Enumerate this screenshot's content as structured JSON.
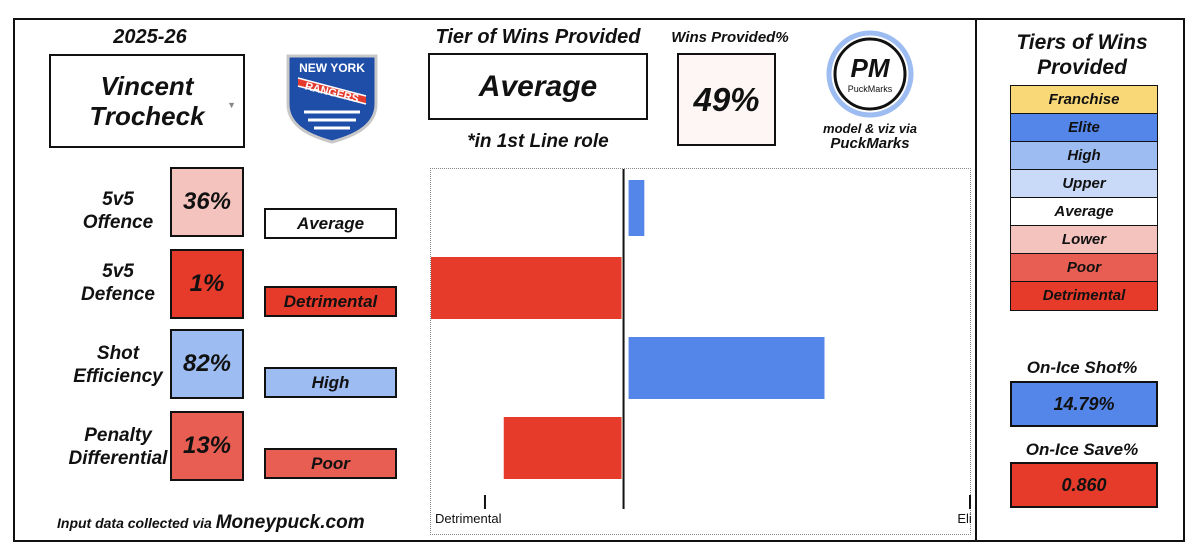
{
  "header": {
    "season": "2025-26",
    "player_name": "Vincent Trocheck",
    "team_logo": {
      "icon": "rangers-shield-logo",
      "line1": "NEW YORK",
      "line2": "RANGERS"
    }
  },
  "metrics": [
    {
      "label_line1": "5v5",
      "label_line2": "Offence",
      "percent": "36%",
      "tier": "Average",
      "pct_color": "#f4c3be",
      "tier_color": "#ffffff"
    },
    {
      "label_line1": "5v5",
      "label_line2": "Defence",
      "percent": "1%",
      "tier": "Detrimental",
      "pct_color": "#e63b2a",
      "tier_color": "#e63b2a"
    },
    {
      "label_line1": "Shot",
      "label_line2": "Efficiency",
      "percent": "82%",
      "tier": "High",
      "pct_color": "#9dbcf2",
      "tier_color": "#9dbcf2"
    },
    {
      "label_line1": "Penalty",
      "label_line2": "Differential",
      "percent": "13%",
      "tier": "Poor",
      "pct_color": "#e85e52",
      "tier_color": "#e85e52"
    }
  ],
  "footer": {
    "prefix": "Input data collected via",
    "source": "Moneypuck.com"
  },
  "tier_of_wins": {
    "title": "Tier of Wins Provided",
    "value": "Average",
    "role_note": "*in 1st Line role"
  },
  "wins_provided": {
    "title": "Wins Provided%",
    "value": "49%"
  },
  "puckmarks": {
    "logo_text": "PM",
    "logo_subtext": "PuckMarks",
    "credit_line": "model & viz via",
    "credit_brand": "PuckMarks"
  },
  "chart_data": {
    "type": "bar",
    "orientation": "horizontal",
    "categories": [
      "5v5 Offence",
      "5v5 Defence",
      "Shot Efficiency",
      "Penalty Differential"
    ],
    "values": [
      0.06,
      -0.55,
      0.58,
      -0.34
    ],
    "xlim": [
      -0.55,
      1.0
    ],
    "x_tick_labels": [
      "Detrimental",
      "Elite"
    ],
    "x_tick_values": [
      -0.4,
      1.0
    ],
    "positive_color": "#5486ea",
    "negative_color": "#e63b2a"
  },
  "right_panel": {
    "title_line1": "Tiers of Wins",
    "title_line2": "Provided",
    "tiers": [
      {
        "label": "Franchise",
        "color": "#f8d877"
      },
      {
        "label": "Elite",
        "color": "#5486ea"
      },
      {
        "label": "High",
        "color": "#9dbcf2"
      },
      {
        "label": "Upper",
        "color": "#c9daf8"
      },
      {
        "label": "Average",
        "color": "#ffffff"
      },
      {
        "label": "Lower",
        "color": "#f4c3be"
      },
      {
        "label": "Poor",
        "color": "#e85e52"
      },
      {
        "label": "Detrimental",
        "color": "#e63b2a"
      }
    ],
    "shot_pct": {
      "title": "On-Ice Shot%",
      "value": "14.79%",
      "color": "#5486ea"
    },
    "save_pct": {
      "title": "On-Ice Save%",
      "value": "0.860",
      "color": "#e63b2a"
    }
  }
}
